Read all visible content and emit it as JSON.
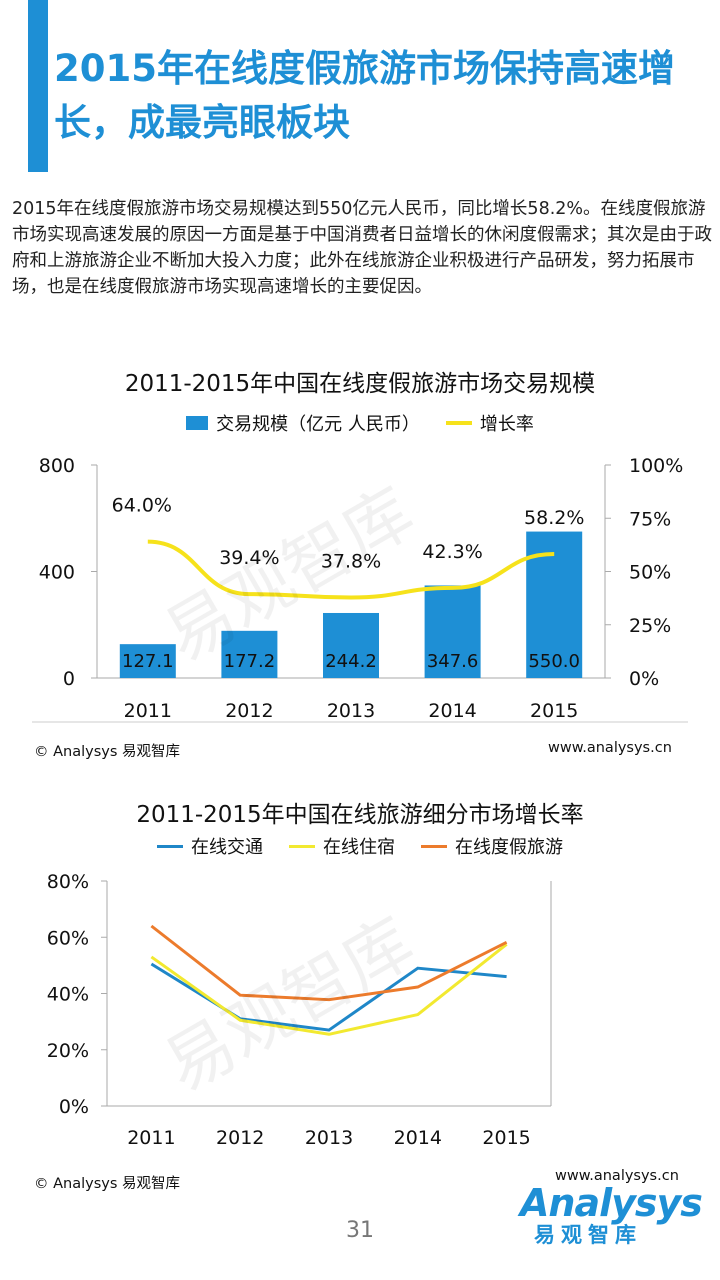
{
  "header": {
    "title": "2015年在线度假旅游市场保持高速增长，成最亮眼板块"
  },
  "summary": "2015年在线度假旅游市场交易规模达到550亿元人民币，同比增长58.2%。在线度假旅游市场实现高速发展的原因一方面是基于中国消费者日益增长的休闲度假需求；其次是由于政府和上游旅游企业不断加大投入力度；此外在线旅游企业积极进行产品研发，努力拓展市场，也是在线度假旅游市场实现高速增长的主要促因。",
  "footer": {
    "source": "© Analysys 易观智库",
    "site": "www.analysys.cn",
    "page_number": "31",
    "logo_word": "Analysys",
    "logo_cn": "易观智库"
  },
  "watermark": "易观智库",
  "colors": {
    "accent": "#1e8fd5",
    "bar": "#1e8fd5",
    "growth_line": "#f6e21b",
    "transport": "#1f87c8",
    "hotel": "#f2e930",
    "vacation": "#ec7b2c"
  },
  "chart_data": [
    {
      "type": "bar",
      "title": "2011-2015年中国在线度假旅游市场交易规模",
      "categories": [
        "2011",
        "2012",
        "2013",
        "2014",
        "2015"
      ],
      "series": [
        {
          "name": "交易规模（亿元 人民币）",
          "type": "bar",
          "axis": "left",
          "values": [
            127.1,
            177.2,
            244.2,
            347.6,
            550.0
          ],
          "labels": [
            "127.1",
            "177.2",
            "244.2",
            "347.6",
            "550.0"
          ]
        },
        {
          "name": "增长率",
          "type": "line",
          "axis": "right",
          "values": [
            64.0,
            39.4,
            37.8,
            42.3,
            58.2
          ],
          "labels": [
            "64.0%",
            "39.4%",
            "37.8%",
            "42.3%",
            "58.2%"
          ]
        }
      ],
      "ylim_left": [
        0,
        800
      ],
      "yticks_left": [
        "0",
        "400",
        "800"
      ],
      "ylim_right": [
        0,
        100
      ],
      "yticks_right": [
        "0%",
        "25%",
        "50%",
        "75%",
        "100%"
      ],
      "grid": false,
      "legend": "top"
    },
    {
      "type": "line",
      "title": "2011-2015年中国在线旅游细分市场增长率",
      "x": [
        "2011",
        "2012",
        "2013",
        "2014",
        "2015"
      ],
      "series": [
        {
          "name": "在线交通",
          "values": [
            50.5,
            31.0,
            27.0,
            49.0,
            46.0
          ]
        },
        {
          "name": "在线住宿",
          "values": [
            53.0,
            30.5,
            25.5,
            32.5,
            57.5
          ]
        },
        {
          "name": "在线度假旅游",
          "values": [
            64.0,
            39.4,
            37.8,
            42.3,
            58.2
          ]
        }
      ],
      "ylim": [
        0,
        80
      ],
      "yticks": [
        "0%",
        "20%",
        "40%",
        "60%",
        "80%"
      ],
      "grid": false,
      "legend": "top"
    }
  ]
}
